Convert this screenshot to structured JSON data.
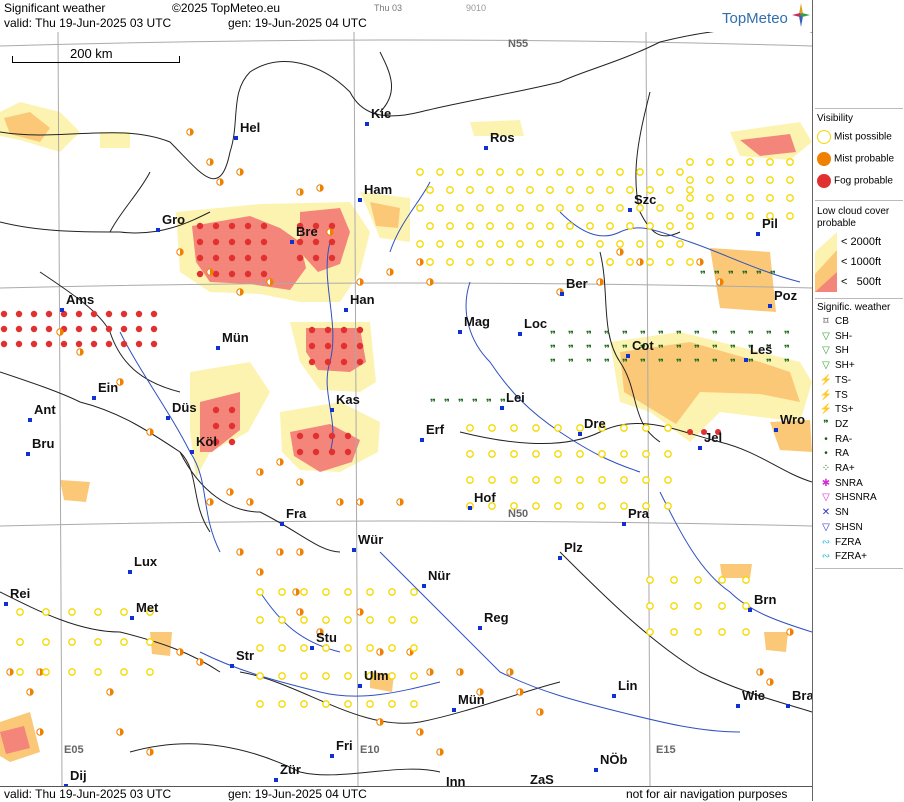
{
  "header": {
    "product": "Significant weather",
    "copyright": "©2025 TopMeteo.eu",
    "run": "Thu 03",
    "code": "9010",
    "valid": "valid:  Thu  19-Jun-2025  03 UTC",
    "gen": "gen: 19-Jun-2025 04 UTC",
    "logo": "TopMeteo"
  },
  "footer": {
    "valid": "valid:  Thu   19-Jun-2025  03 UTC",
    "gen": "gen: 19-Jun-2025 04 UTC",
    "disclaimer": "not for air navigation purposes"
  },
  "scale_label": "200 km",
  "grid_labels": [
    "N55",
    "N50",
    "E05",
    "E10",
    "E15"
  ],
  "cities": [
    {
      "name": "Hel"
    },
    {
      "name": "Kie"
    },
    {
      "name": "Ros"
    },
    {
      "name": "Ham"
    },
    {
      "name": "Szc"
    },
    {
      "name": "Gro"
    },
    {
      "name": "Bre"
    },
    {
      "name": "Pil"
    },
    {
      "name": "Ber"
    },
    {
      "name": "Ams"
    },
    {
      "name": "Han"
    },
    {
      "name": "Poz"
    },
    {
      "name": "Mag"
    },
    {
      "name": "Loc"
    },
    {
      "name": "Mün"
    },
    {
      "name": "Cot"
    },
    {
      "name": "Leš"
    },
    {
      "name": "Ein"
    },
    {
      "name": "Kas"
    },
    {
      "name": "Lei"
    },
    {
      "name": "Ant"
    },
    {
      "name": "Düs"
    },
    {
      "name": "Erf"
    },
    {
      "name": "Dre"
    },
    {
      "name": "Wro"
    },
    {
      "name": "Bru"
    },
    {
      "name": "Köl"
    },
    {
      "name": "Jel"
    },
    {
      "name": "Hof"
    },
    {
      "name": "Fra"
    },
    {
      "name": "Pra"
    },
    {
      "name": "Wür"
    },
    {
      "name": "Lux"
    },
    {
      "name": "Plz"
    },
    {
      "name": "Nür"
    },
    {
      "name": "Rei"
    },
    {
      "name": "Met"
    },
    {
      "name": "Brn"
    },
    {
      "name": "Reg"
    },
    {
      "name": "Stu"
    },
    {
      "name": "Str"
    },
    {
      "name": "Ulm"
    },
    {
      "name": "Lin"
    },
    {
      "name": "Wie"
    },
    {
      "name": "Bra"
    },
    {
      "name": "Mün"
    },
    {
      "name": "Fri"
    },
    {
      "name": "NÖb"
    },
    {
      "name": "Dij"
    },
    {
      "name": "Zür"
    },
    {
      "name": "Inn"
    },
    {
      "name": "ZaS"
    }
  ],
  "legend": {
    "visibility_title": "Visibility",
    "visibility": [
      {
        "label": "Mist possible",
        "color": "#f5d800"
      },
      {
        "label": "Mist probable",
        "color": "#f08000"
      },
      {
        "label": "Fog probable",
        "color": "#e03030"
      }
    ],
    "lowcloud_title_1": "Low cloud cover",
    "lowcloud_title_2": "probable",
    "lowcloud": [
      {
        "label": "< 2000ft",
        "color": "#fdf3b0"
      },
      {
        "label": "< 1000ft",
        "color": "#fbc877"
      },
      {
        "label": "<   500ft",
        "color": "#f3857a"
      }
    ],
    "sigwx_title": "Signific. weather",
    "sigwx": [
      {
        "label": "CB",
        "icon": "cb-icon",
        "color": "#222222"
      },
      {
        "label": "SH-",
        "icon": "shower-light-icon",
        "color": "#30a030"
      },
      {
        "label": "SH",
        "icon": "shower-icon",
        "color": "#30a030"
      },
      {
        "label": "SH+",
        "icon": "shower-heavy-icon",
        "color": "#30a030"
      },
      {
        "label": "TS-",
        "icon": "thunderstorm-light-icon",
        "color": "#d03030"
      },
      {
        "label": "TS",
        "icon": "thunderstorm-icon",
        "color": "#d03030"
      },
      {
        "label": "TS+",
        "icon": "thunderstorm-heavy-icon",
        "color": "#d03030"
      },
      {
        "label": "DZ",
        "icon": "drizzle-icon",
        "color": "#106010"
      },
      {
        "label": "RA-",
        "icon": "rain-light-icon",
        "color": "#106010"
      },
      {
        "label": "RA",
        "icon": "rain-icon",
        "color": "#106010"
      },
      {
        "label": "RA+",
        "icon": "rain-heavy-icon",
        "color": "#106010"
      },
      {
        "label": "SNRA",
        "icon": "sleet-icon",
        "color": "#d030d0"
      },
      {
        "label": "SHSNRA",
        "icon": "sleet-shower-icon",
        "color": "#d030d0"
      },
      {
        "label": "SN",
        "icon": "snow-icon",
        "color": "#3030d0"
      },
      {
        "label": "SHSN",
        "icon": "snow-shower-icon",
        "color": "#3030d0"
      },
      {
        "label": "FZRA",
        "icon": "freezing-rain-icon",
        "color": "#30c0e0"
      },
      {
        "label": "FZRA+",
        "icon": "freezing-rain-heavy-icon",
        "color": "#30c0e0"
      }
    ]
  }
}
